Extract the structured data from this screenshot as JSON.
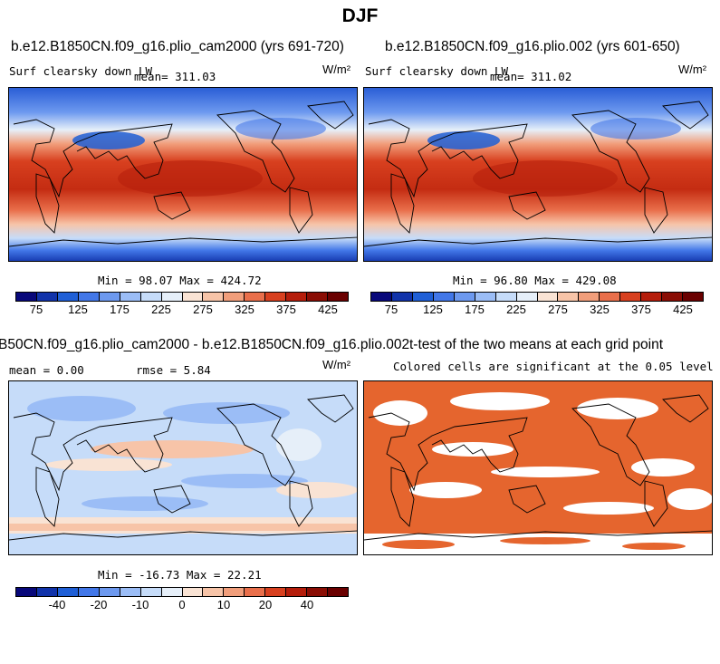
{
  "title": "DJF",
  "panels": {
    "tl": {
      "title": "b.e12.B1850CN.f09_g16.plio_cam2000 (yrs 691-720)",
      "variable": "Surf clearsky down LW",
      "mean_label": "mean= 311.03",
      "units": "W/m²",
      "minmax": "Min = 98.07 Max = 424.72"
    },
    "tr": {
      "title": "b.e12.B1850CN.f09_g16.plio.002 (yrs 601-650)",
      "variable": "Surf clearsky down LW",
      "mean_label": "mean= 311.02",
      "units": "W/m²",
      "minmax": "Min = 96.80 Max = 429.08"
    },
    "bl": {
      "title": "B50CN.f09_g16.plio_cam2000 - b.e12.B1850CN.f09_g16.plio.002",
      "mean_label": "mean = 0.00",
      "rmse_label": "rmse = 5.84",
      "units": "W/m²",
      "minmax": "Min = -16.73 Max = 22.21"
    },
    "br": {
      "title": "t-test of the two means at each grid point",
      "subtitle": "Colored cells are significant at the 0.05 level"
    }
  },
  "colorbar_abs": {
    "colors": [
      "#08087a",
      "#1133aa",
      "#1f5fd6",
      "#4277e8",
      "#6d99ef",
      "#9bbdf6",
      "#c6dcf9",
      "#e6eff9",
      "#f9e3d4",
      "#f7c4a8",
      "#f19e7b",
      "#e96f4b",
      "#d8401f",
      "#b51d0b",
      "#8a0d04",
      "#6a0000"
    ],
    "labels": [
      "75",
      "125",
      "175",
      "225",
      "275",
      "325",
      "375",
      "425"
    ]
  },
  "colorbar_diff": {
    "colors": [
      "#08087a",
      "#1133aa",
      "#1f5fd6",
      "#4277e8",
      "#6d99ef",
      "#9bbdf6",
      "#c6dcf9",
      "#e6eff9",
      "#f9e3d4",
      "#f7c4a8",
      "#f19e7b",
      "#e96f4b",
      "#d8401f",
      "#b51d0b",
      "#8a0d04",
      "#6a0000"
    ],
    "labels": [
      "-40",
      "-20",
      "-10",
      "0",
      "10",
      "20",
      "40"
    ]
  }
}
